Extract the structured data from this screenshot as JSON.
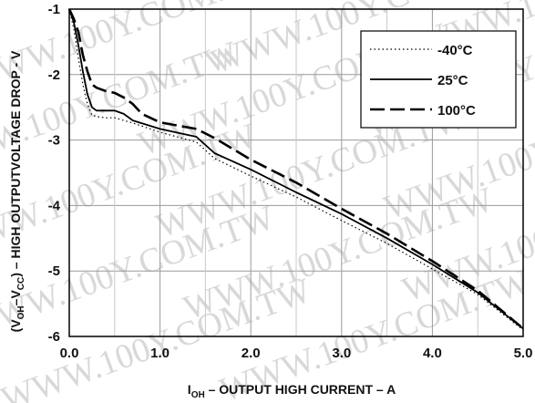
{
  "watermark": "WWW.100Y.COM.TW",
  "chart_data": {
    "type": "line",
    "title": "",
    "xlabel": {
      "main": "I",
      "sub": "OH",
      "rest": " – OUTPUT HIGH CURRENT – A"
    },
    "ylabel": {
      "p1": "(V",
      "s1": "OH",
      "p2": "–V",
      "s2": "CC",
      "p3": ") – HIGH OUTPUTVOLTAGE DROP - V"
    },
    "xlim": [
      0,
      5
    ],
    "ylim": [
      -6,
      -1
    ],
    "x_ticks": [
      0,
      1,
      2,
      3,
      4,
      5
    ],
    "x_tick_labels": [
      "0.0",
      "1.0",
      "2.0",
      "3.0",
      "4.0",
      "5.0"
    ],
    "y_ticks": [
      -1,
      -2,
      -3,
      -4,
      -5,
      -6
    ],
    "y_tick_labels": [
      "-1",
      "-2",
      "-3",
      "-4",
      "-5",
      "-6"
    ],
    "grid": true,
    "legend_position": "top-right",
    "series": [
      {
        "name": "-40°C",
        "style": "dotted",
        "color": "#000000",
        "x": [
          0.0,
          0.05,
          0.1,
          0.15,
          0.2,
          0.25,
          0.3,
          0.4,
          0.5,
          0.7,
          1.0,
          1.4,
          1.6,
          2.0,
          2.5,
          3.0,
          3.5,
          4.0,
          4.5,
          5.0
        ],
        "y": [
          -1.0,
          -1.3,
          -1.75,
          -2.15,
          -2.45,
          -2.62,
          -2.64,
          -2.66,
          -2.66,
          -2.74,
          -2.88,
          -3.03,
          -3.28,
          -3.55,
          -3.87,
          -4.23,
          -4.58,
          -4.97,
          -5.36,
          -5.9
        ]
      },
      {
        "name": "25°C",
        "style": "solid",
        "color": "#000000",
        "x": [
          0.0,
          0.05,
          0.1,
          0.15,
          0.2,
          0.25,
          0.3,
          0.4,
          0.5,
          0.6,
          0.7,
          1.0,
          1.4,
          1.6,
          2.0,
          2.5,
          3.0,
          3.5,
          4.0,
          4.5,
          5.0
        ],
        "y": [
          -1.0,
          -1.2,
          -1.55,
          -1.95,
          -2.3,
          -2.5,
          -2.55,
          -2.55,
          -2.55,
          -2.6,
          -2.7,
          -2.83,
          -2.95,
          -3.2,
          -3.45,
          -3.8,
          -4.13,
          -4.5,
          -4.9,
          -5.33,
          -5.88
        ]
      },
      {
        "name": "100°C",
        "style": "dashed",
        "color": "#000000",
        "x": [
          0.0,
          0.05,
          0.1,
          0.15,
          0.2,
          0.25,
          0.3,
          0.4,
          0.5,
          0.6,
          0.7,
          0.8,
          1.0,
          1.4,
          1.6,
          2.0,
          2.5,
          3.0,
          3.5,
          4.0,
          4.5,
          5.0
        ],
        "y": [
          -1.0,
          -1.15,
          -1.35,
          -1.7,
          -1.95,
          -2.15,
          -2.2,
          -2.25,
          -2.28,
          -2.35,
          -2.45,
          -2.6,
          -2.73,
          -2.83,
          -2.97,
          -3.3,
          -3.65,
          -4.05,
          -4.43,
          -4.85,
          -5.3,
          -5.88
        ]
      }
    ]
  }
}
